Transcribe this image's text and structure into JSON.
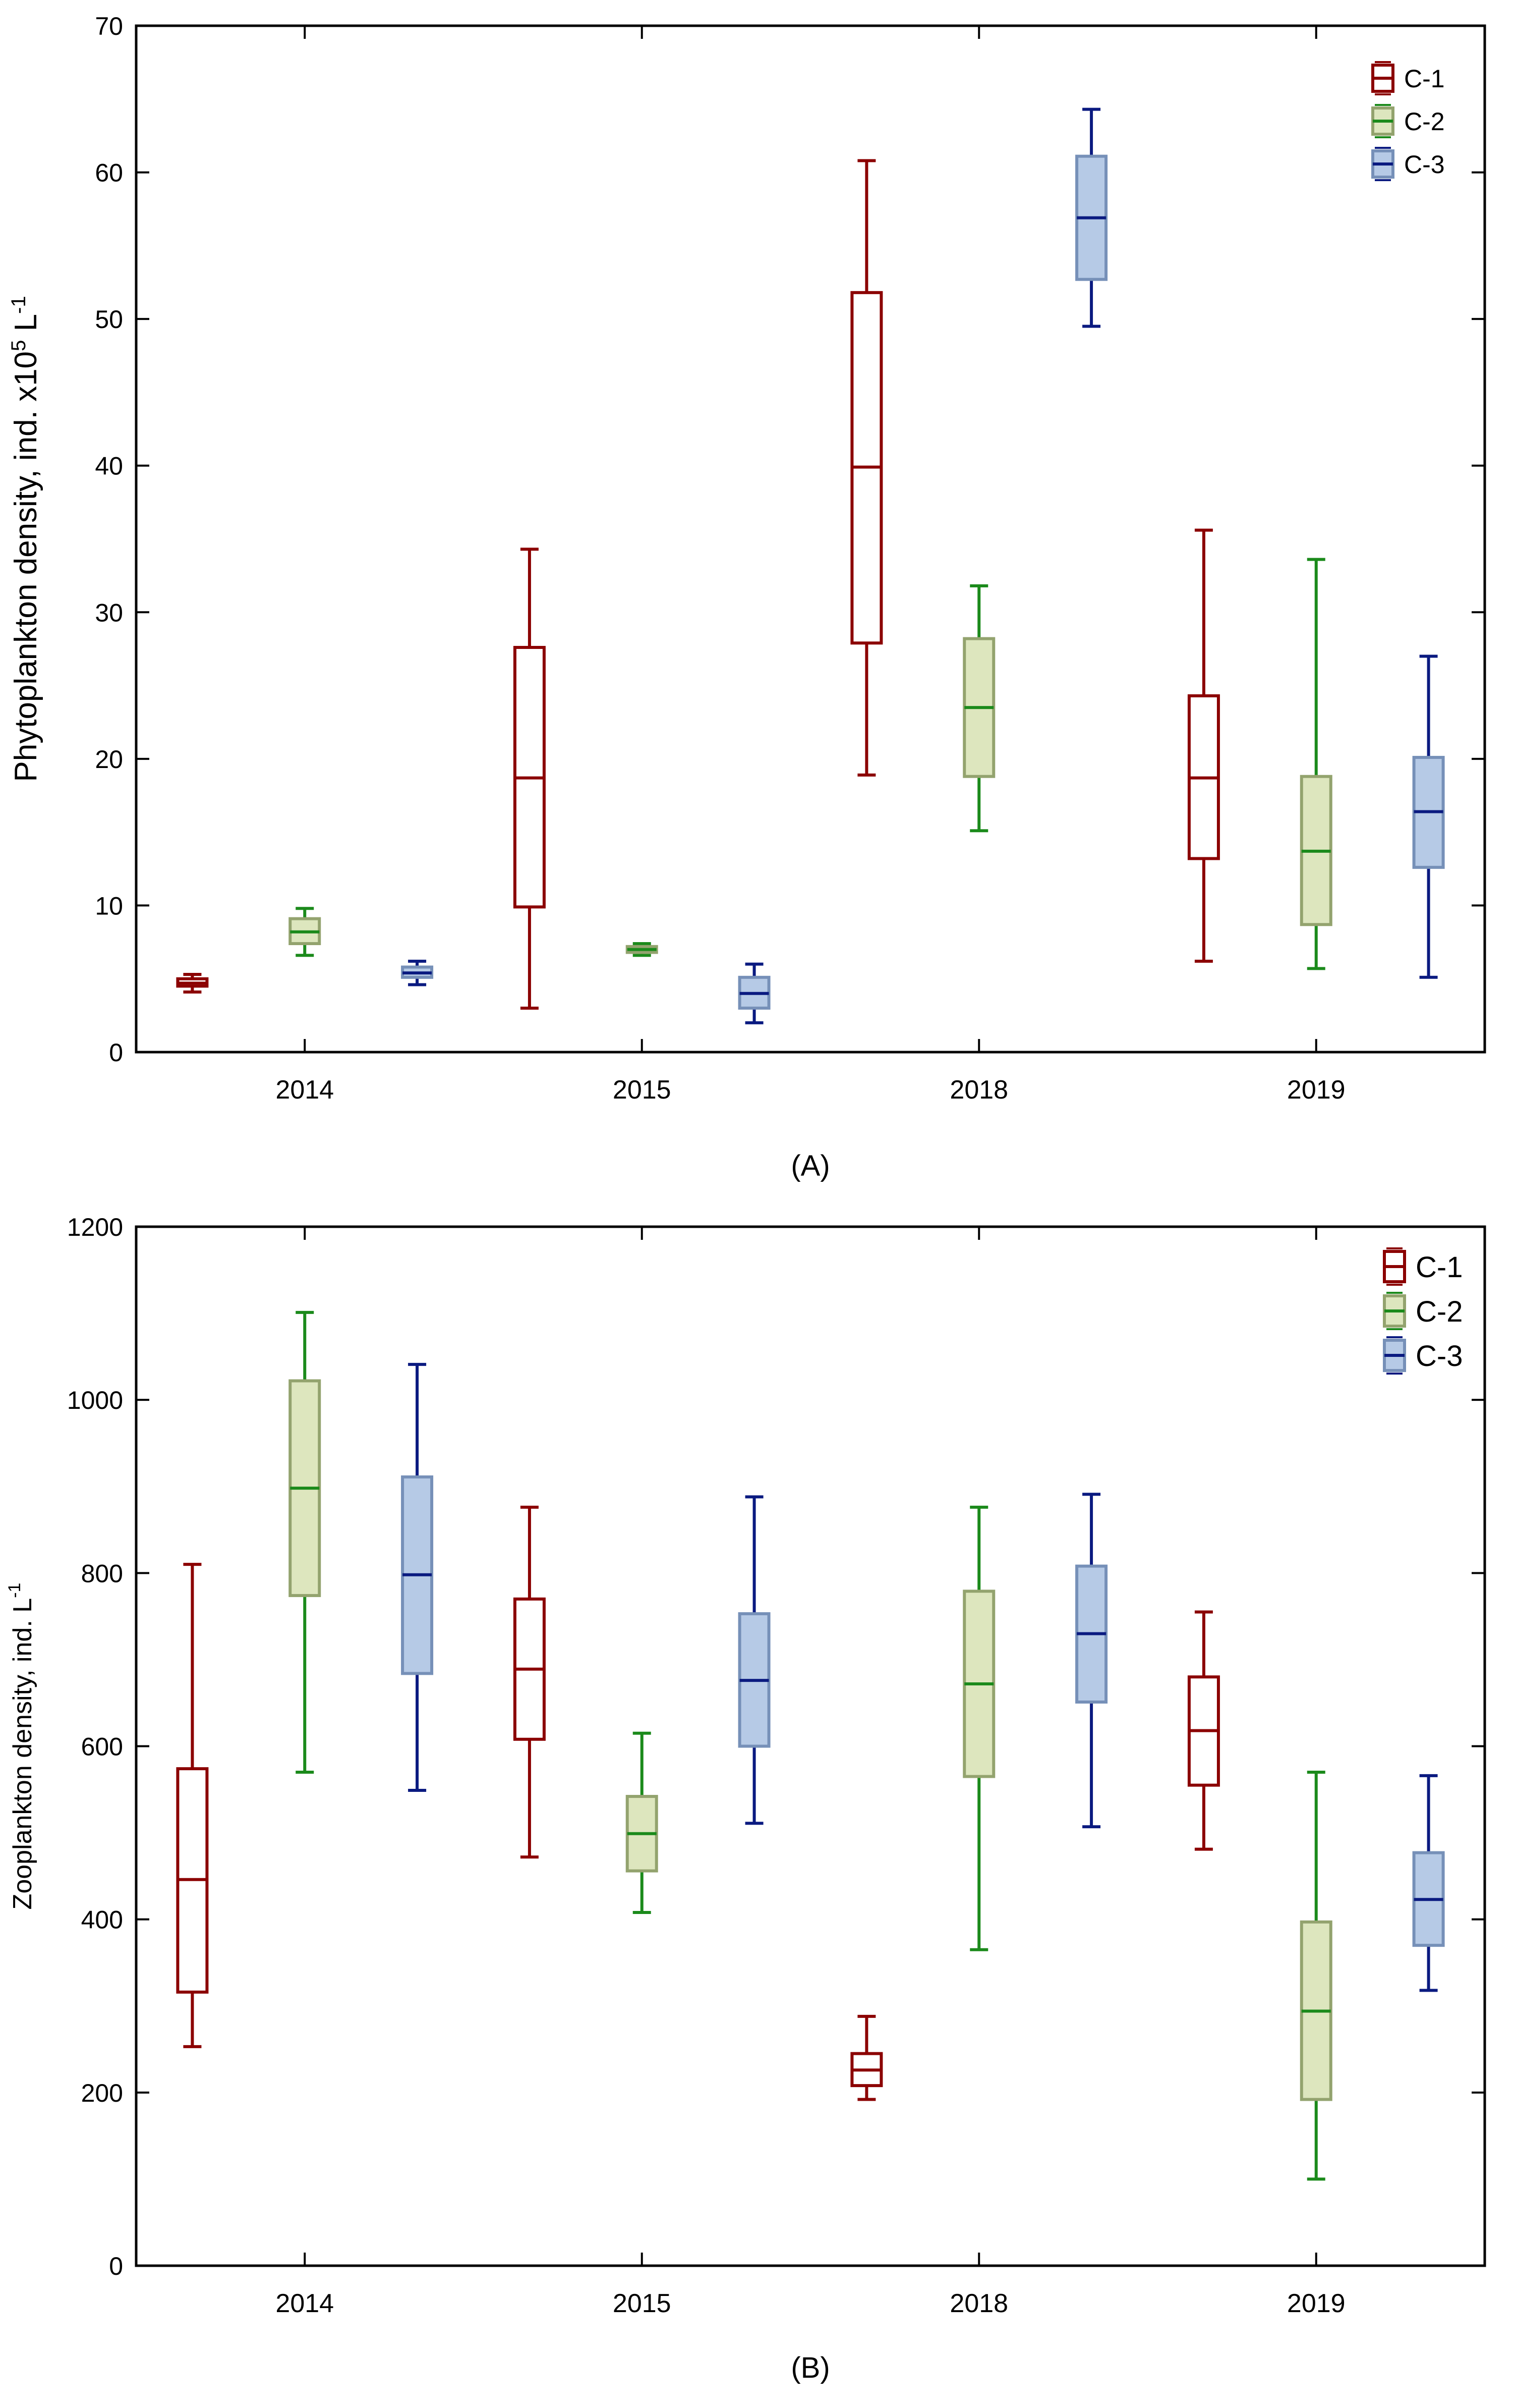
{
  "colors": {
    "C-1": {
      "stroke": "#8b0000",
      "fill": "#ffffff",
      "whisker": "#8b0000",
      "median": "#8b0000"
    },
    "C-2": {
      "stroke": "#93a36e",
      "fill": "#dde6be",
      "whisker": "#1b8a1b",
      "median": "#1b8a1b"
    },
    "C-3": {
      "stroke": "#7690b8",
      "fill": "#b6cae6",
      "whisker": "#0a1a80",
      "median": "#0a1a80"
    }
  },
  "chart_data": [
    {
      "type": "box",
      "panel": "(A)",
      "panel_letter": "A",
      "title": "",
      "xlabel": "",
      "ylabel": "Phytoplankton density, ind. x10",
      "ylabel_sup1": "5",
      "ylabel_mid": " L",
      "ylabel_sup2": "-1",
      "ylim": [
        0,
        70
      ],
      "yticks": [
        0,
        10,
        20,
        30,
        40,
        50,
        60,
        70
      ],
      "grid": false,
      "legend_position": "top-right",
      "categories": [
        "2014",
        "2015",
        "2018",
        "2019"
      ],
      "series": [
        {
          "name": "C-1",
          "boxes": [
            {
              "min": 4.1,
              "q1": 4.5,
              "median": 4.7,
              "q3": 5.0,
              "max": 5.3
            },
            {
              "min": 3.0,
              "q1": 9.9,
              "median": 18.7,
              "q3": 27.6,
              "max": 34.3
            },
            {
              "min": 18.9,
              "q1": 27.9,
              "median": 39.9,
              "q3": 51.8,
              "max": 60.8
            },
            {
              "min": 6.2,
              "q1": 13.2,
              "median": 18.7,
              "q3": 24.3,
              "max": 35.6
            }
          ]
        },
        {
          "name": "C-2",
          "boxes": [
            {
              "min": 6.6,
              "q1": 7.4,
              "median": 8.2,
              "q3": 9.1,
              "max": 9.8
            },
            {
              "min": 6.6,
              "q1": 6.8,
              "median": 7.0,
              "q3": 7.2,
              "max": 7.4
            },
            {
              "min": 15.1,
              "q1": 18.8,
              "median": 23.5,
              "q3": 28.2,
              "max": 31.8
            },
            {
              "min": 5.7,
              "q1": 8.7,
              "median": 13.7,
              "q3": 18.8,
              "max": 33.6
            }
          ]
        },
        {
          "name": "C-3",
          "boxes": [
            {
              "min": 4.6,
              "q1": 5.1,
              "median": 5.4,
              "q3": 5.8,
              "max": 6.2
            },
            {
              "min": 2.0,
              "q1": 3.0,
              "median": 4.0,
              "q3": 5.1,
              "max": 6.0
            },
            {
              "min": 49.5,
              "q1": 52.7,
              "median": 56.9,
              "q3": 61.1,
              "max": 64.3
            },
            {
              "min": 5.1,
              "q1": 12.6,
              "median": 16.4,
              "q3": 20.1,
              "max": 27.0
            }
          ]
        }
      ]
    },
    {
      "type": "box",
      "panel": "(B)",
      "panel_letter": "B",
      "title": "",
      "xlabel": "",
      "ylabel": "Zooplankton density, ind. L",
      "ylabel_sup1": "-1",
      "ylabel_mid": "",
      "ylabel_sup2": "",
      "ylim": [
        0,
        1200
      ],
      "yticks": [
        0,
        200,
        400,
        600,
        800,
        1000,
        1200
      ],
      "grid": false,
      "legend_position": "top-right",
      "categories": [
        "2014",
        "2015",
        "2018",
        "2019"
      ],
      "series": [
        {
          "name": "C-1",
          "boxes": [
            {
              "min": 253,
              "q1": 316,
              "median": 446,
              "q3": 574,
              "max": 810
            },
            {
              "min": 472,
              "q1": 608,
              "median": 689,
              "q3": 770,
              "max": 876
            },
            {
              "min": 192,
              "q1": 208,
              "median": 226,
              "q3": 245,
              "max": 288
            },
            {
              "min": 481,
              "q1": 555,
              "median": 618,
              "q3": 680,
              "max": 755
            }
          ]
        },
        {
          "name": "C-2",
          "boxes": [
            {
              "min": 570,
              "q1": 774,
              "median": 898,
              "q3": 1022,
              "max": 1101
            },
            {
              "min": 408,
              "q1": 456,
              "median": 499,
              "q3": 542,
              "max": 615
            },
            {
              "min": 365,
              "q1": 565,
              "median": 672,
              "q3": 779,
              "max": 876
            },
            {
              "min": 100,
              "q1": 192,
              "median": 294,
              "q3": 397,
              "max": 570
            }
          ]
        },
        {
          "name": "C-3",
          "boxes": [
            {
              "min": 549,
              "q1": 684,
              "median": 798,
              "q3": 911,
              "max": 1041
            },
            {
              "min": 511,
              "q1": 600,
              "median": 676,
              "q3": 753,
              "max": 888
            },
            {
              "min": 507,
              "q1": 651,
              "median": 730,
              "q3": 808,
              "max": 891
            },
            {
              "min": 318,
              "q1": 370,
              "median": 423,
              "q3": 477,
              "max": 566
            }
          ]
        }
      ]
    }
  ]
}
